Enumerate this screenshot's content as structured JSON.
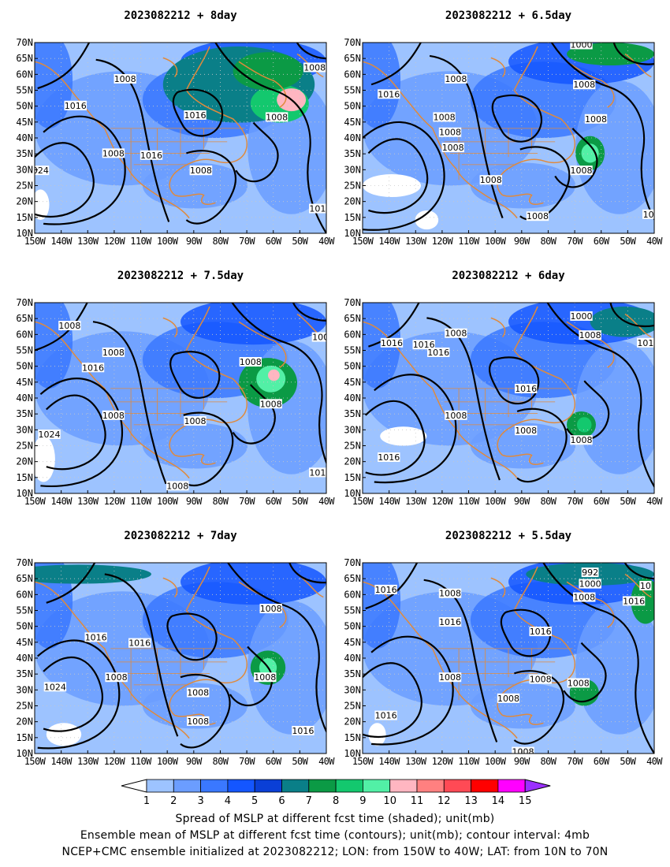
{
  "figure": {
    "panels": [
      {
        "id": "p8",
        "title": "2023082212  +  8day",
        "contour_labels": [
          "1008",
          "1008",
          "1016",
          "1016",
          "1008",
          "1016",
          "1008",
          "1008",
          "1016",
          "024",
          "1008",
          "101"
        ]
      },
      {
        "id": "p65",
        "title": "2023082212  +  6.5day",
        "contour_labels": [
          "1000",
          "1008",
          "1008",
          "1016",
          "1008",
          "1008",
          "1008",
          "1008",
          "1008",
          "1008",
          "1008",
          "10"
        ]
      },
      {
        "id": "p75",
        "title": "2023082212  +  7.5day",
        "contour_labels": [
          "1008",
          "1008",
          "1016",
          "1008",
          "1008",
          "1008",
          "1024",
          "1008",
          "1008",
          "101",
          "100"
        ]
      },
      {
        "id": "p6",
        "title": "2023082212  +  6day",
        "contour_labels": [
          "1000",
          "1008",
          "1016",
          "1016",
          "1016",
          "1008",
          "1016",
          "1008",
          "1008",
          "1016",
          "1008",
          "101"
        ]
      },
      {
        "id": "p7",
        "title": "2023082212  +  7day",
        "contour_labels": [
          "1008",
          "1016",
          "1016",
          "1008",
          "1008",
          "1008",
          "1008",
          "1016",
          "1024"
        ]
      },
      {
        "id": "p55",
        "title": "2023082212  +  5.5day",
        "contour_labels": [
          "992",
          "1000",
          "1008",
          "1008",
          "1016",
          "1008",
          "1016",
          "1016",
          "1016",
          "1008",
          "1008",
          "1008",
          "1008",
          "1016",
          "10"
        ]
      }
    ],
    "lat_ticks": [
      "70N",
      "65N",
      "60N",
      "55N",
      "50N",
      "45N",
      "40N",
      "35N",
      "30N",
      "25N",
      "20N",
      "15N",
      "10N"
    ],
    "lon_ticks": [
      "150W",
      "140W",
      "130W",
      "120W",
      "110W",
      "100W",
      "90W",
      "80W",
      "70W",
      "60W",
      "50W",
      "40W"
    ]
  },
  "colorbar": {
    "labels": [
      "1",
      "2",
      "3",
      "4",
      "5",
      "6",
      "7",
      "8",
      "9",
      "10",
      "11",
      "12",
      "13",
      "14",
      "15"
    ],
    "colors": [
      "#ffffff",
      "#9dc3ff",
      "#6b9dff",
      "#3a78ff",
      "#1456ff",
      "#0a3fd6",
      "#0a7f88",
      "#0b9a45",
      "#13c86e",
      "#52f0a6",
      "#ffb6c1",
      "#ff8080",
      "#ff4a55",
      "#ff0000",
      "#ff00ff",
      "#9b30ff"
    ]
  },
  "captions": [
    "Spread of MSLP at different fcst time (shaded); unit(mb)",
    "Ensemble mean of MSLP at different fcst time (contours); unit(mb); contour interval: 4mb",
    "NCEP+CMC ensemble initialized at 2023082212; LON: from 150W to 40W; LAT: from 10N to 70N"
  ]
}
